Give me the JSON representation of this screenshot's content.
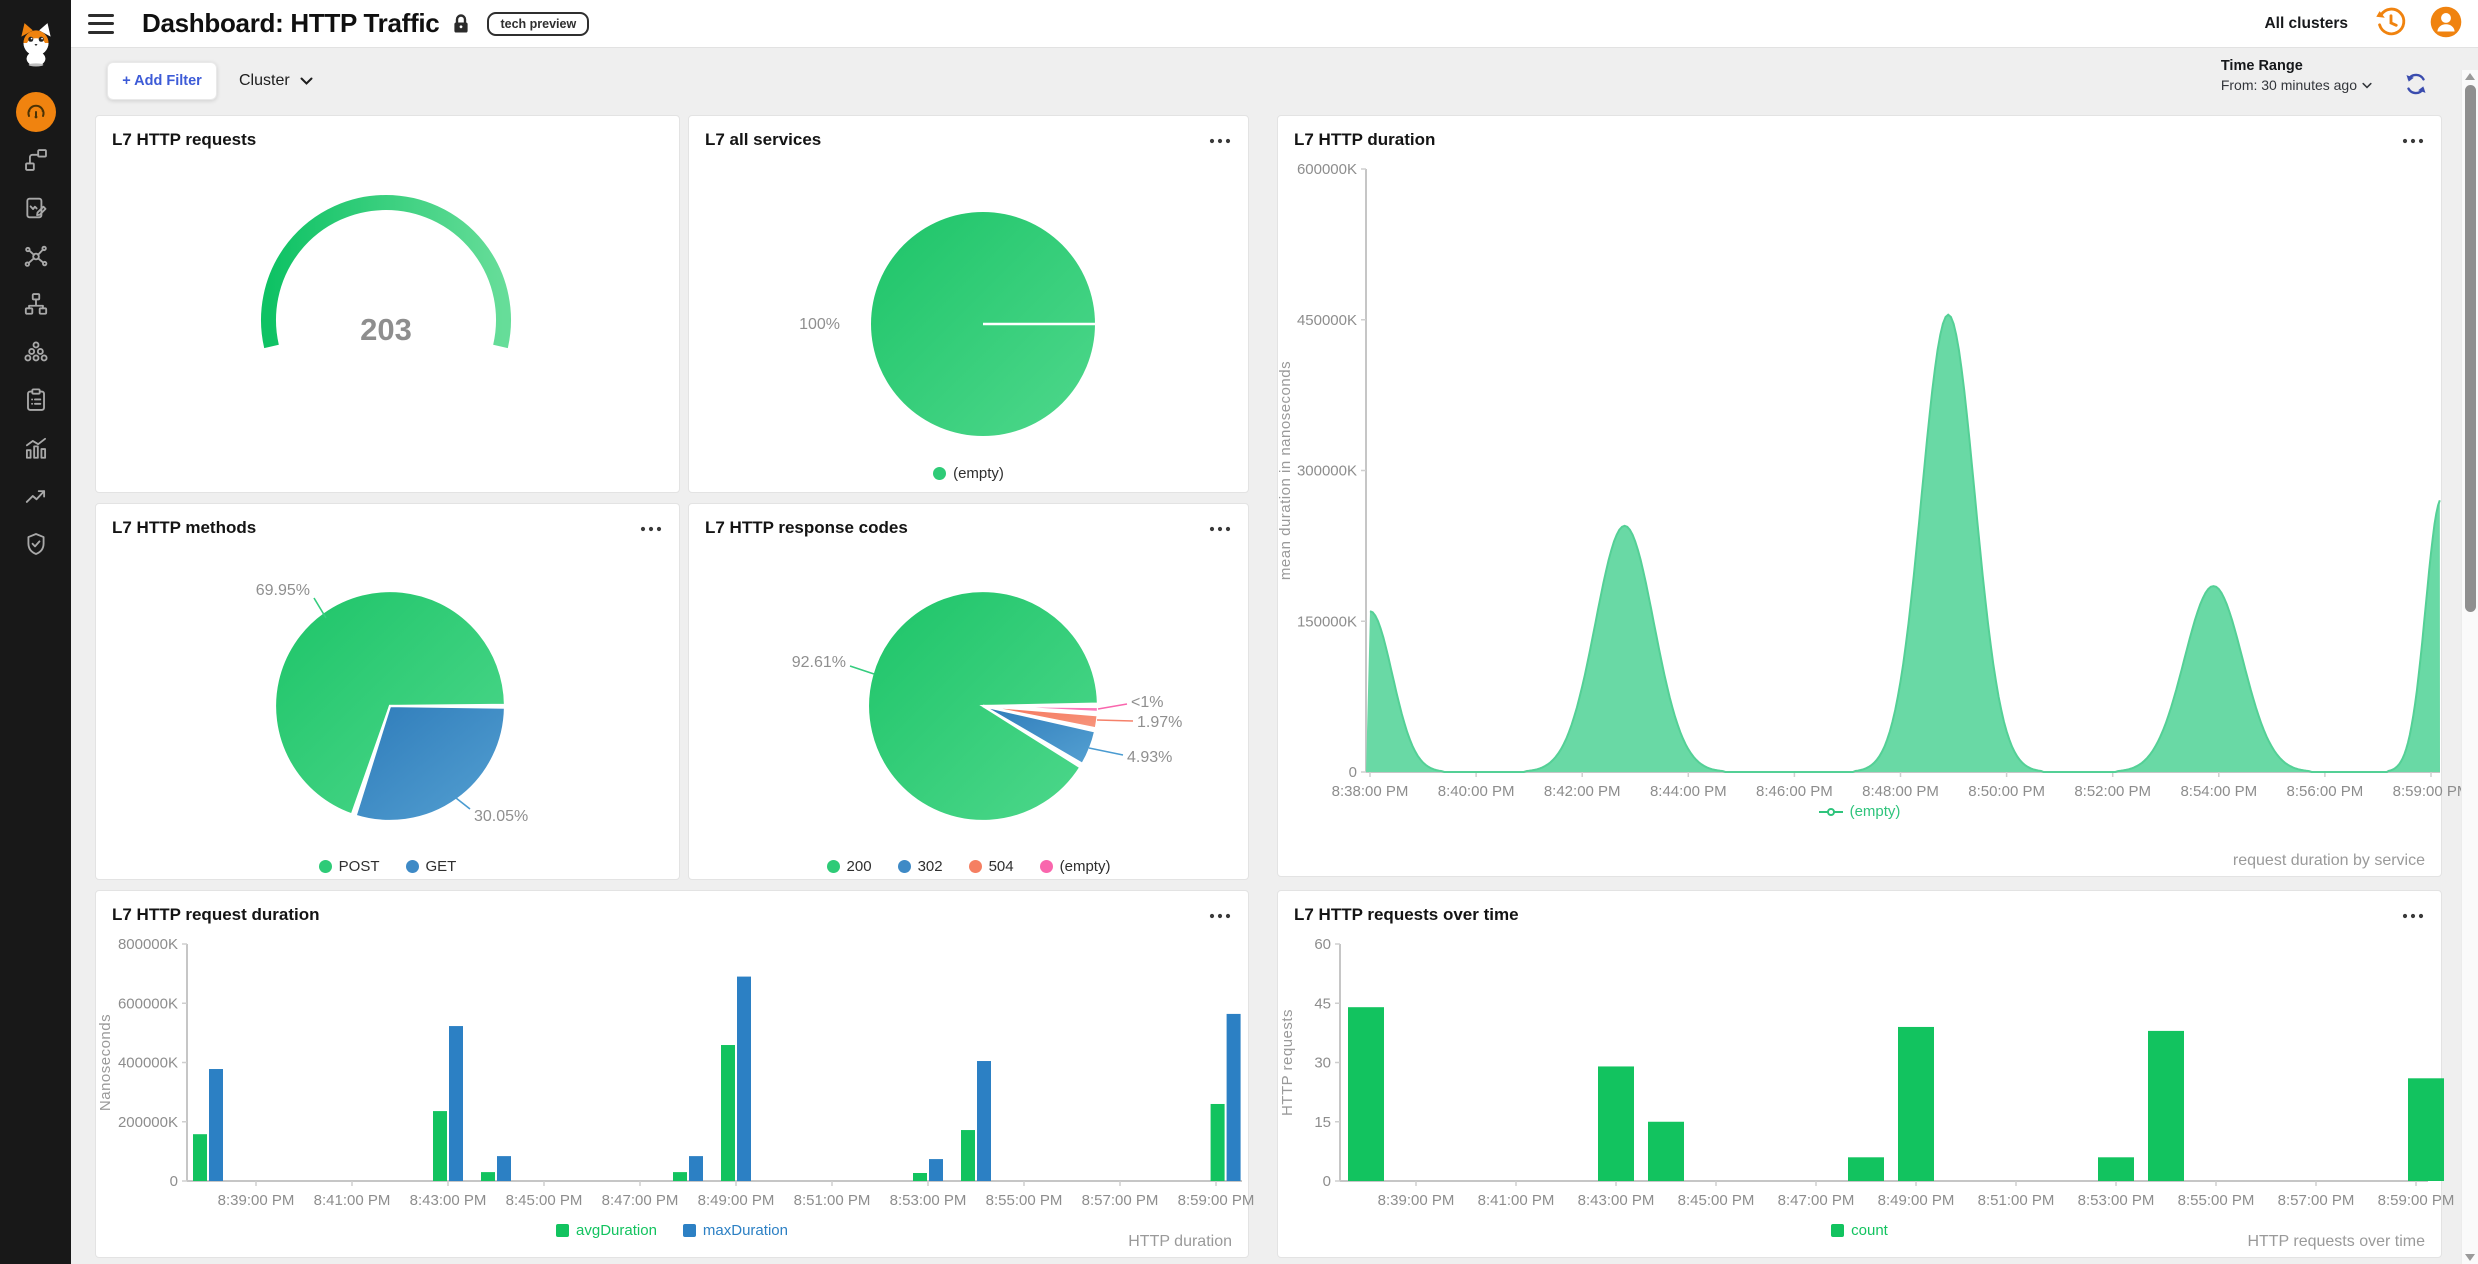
{
  "header": {
    "title": "Dashboard: HTTP Traffic",
    "badge": "tech preview",
    "all_clusters": "All clusters"
  },
  "filter_bar": {
    "add_filter": "+ Add Filter",
    "cluster": "Cluster",
    "time_range_label": "Time Range",
    "time_range_value": "From: 30 minutes ago"
  },
  "sidebar": {
    "items": [
      "cat-logo",
      "dashboard",
      "topology",
      "flow-logs",
      "service-map",
      "network",
      "clusters",
      "processes",
      "metrics",
      "trends",
      "security"
    ]
  },
  "palette": {
    "green": "#2ecb77",
    "blue": "#3e8ac6",
    "salmon": "#f57f62",
    "pink": "#f966ad",
    "orange": "#f0830f",
    "indigo": "#3a4cae",
    "link_blue": "#3d5bd7"
  },
  "cards": {
    "requests": {
      "title": "L7 HTTP requests",
      "gauge": {
        "value": "203",
        "a0": 167,
        "a1": 373,
        "c1": "#0ec264",
        "c2": "#66dd99"
      }
    },
    "services": {
      "title": "L7 all services",
      "pie": {
        "slices": [
          {
            "label": "(empty)",
            "pct": 100,
            "a0": 0,
            "a1": 360,
            "c1": "#1dc468",
            "c2": "#4fd88c"
          }
        ],
        "callouts": [
          {
            "text": "100%",
            "tx": -143,
            "ty": 0,
            "anchor": "end"
          }
        ],
        "legend": [
          {
            "label": "(empty)",
            "color": "#2ecb77"
          }
        ]
      }
    },
    "duration": {
      "title": "L7 HTTP duration",
      "caption": "request duration by service",
      "chart": {
        "type": "area",
        "ylabel": "mean duration in nanoseconds",
        "ymax": 600000,
        "yticks": [
          {
            "v": 0,
            "t": "0"
          },
          {
            "v": 150000,
            "t": "150000K"
          },
          {
            "v": 300000,
            "t": "300000K"
          },
          {
            "v": 450000,
            "t": "450000K"
          },
          {
            "v": 600000,
            "t": "600000K"
          }
        ],
        "xticks": [
          "8:38:00 PM",
          "8:40:00 PM",
          "8:42:00 PM",
          "8:44:00 PM",
          "8:46:00 PM",
          "8:48:00 PM",
          "8:50:00 PM",
          "8:52:00 PM",
          "8:54:00 PM",
          "8:56:00 PM",
          "8:59:00 PM"
        ],
        "series_name": "(empty)",
        "peaks": [
          {
            "minute": 0,
            "value": 160000,
            "sigma": 0.42
          },
          {
            "minute": 4.8,
            "value": 245000,
            "sigma": 0.55
          },
          {
            "minute": 10.9,
            "value": 455000,
            "sigma": 0.5
          },
          {
            "minute": 15.9,
            "value": 185000,
            "sigma": 0.55
          },
          {
            "minute": 21.3,
            "value": 272000,
            "sigma": 0.45
          }
        ],
        "fill": "#69d9a5",
        "stroke": "#54d096",
        "legend": [
          {
            "label": "(empty)",
            "color": "#2fc47c",
            "marker": "linedot"
          }
        ]
      }
    },
    "methods": {
      "title": "L7 HTTP methods",
      "pie": {
        "slices": [
          {
            "label": "POST",
            "pct": 69.95,
            "a0": 109.4,
            "a1": 359.4,
            "c1": "#1dc468",
            "c2": "#4fd88c"
          },
          {
            "label": "GET",
            "pct": 30.05,
            "a0": 0.8,
            "a1": 107.4,
            "c1": "#2f7cba",
            "c2": "#54a0d2"
          }
        ],
        "callouts": [
          {
            "text": "69.95%",
            "tx": -80,
            "ty": -116,
            "anchor": "end",
            "leader": [
              -76,
              -108,
              -64,
              -88
            ],
            "color": "#35cc7e"
          },
          {
            "text": "30.05%",
            "tx": 84,
            "ty": 110,
            "anchor": "start",
            "leader": [
              66,
              92,
              80,
              103
            ],
            "color": "#4a9bd1"
          }
        ],
        "legend": [
          {
            "label": "POST",
            "color": "#2ecb77"
          },
          {
            "label": "GET",
            "color": "#3e8ac6"
          }
        ]
      }
    },
    "codes": {
      "title": "L7 HTTP response codes",
      "pie": {
        "slices": [
          {
            "label": "200",
            "pct": 92.61,
            "a0": 32.2,
            "a1": 358.8,
            "c1": "#1dc468",
            "c2": "#4fd88c"
          },
          {
            "label": "302",
            "pct": 4.93,
            "a0": 12.8,
            "a1": 30.2,
            "c1": "#2f7cba",
            "c2": "#54a0d2"
          },
          {
            "label": "504",
            "pct": 1.97,
            "a0": 4.6,
            "a1": 11.2,
            "c1": "#f5745a",
            "c2": "#f7967d"
          },
          {
            "label": "(empty)",
            "pct": 0.49,
            "a0": 0.5,
            "a1": 3.0,
            "c1": "#f966ad",
            "c2": "#fb7fc0"
          }
        ],
        "callouts": [
          {
            "text": "92.61%",
            "tx": -137,
            "ty": -44,
            "anchor": "end",
            "leader": [
              -133,
              -40,
              -109,
              -32
            ],
            "color": "#35cc7e"
          },
          {
            "text": "<1%",
            "tx": 148,
            "ty": -4,
            "anchor": "start",
            "leader": [
              115,
              3,
              144,
              -2
            ],
            "color": "#f966ad"
          },
          {
            "text": "1.97%",
            "tx": 154,
            "ty": 16,
            "anchor": "start",
            "leader": [
              114,
              14,
              150,
              15
            ],
            "color": "#f5816a"
          },
          {
            "text": "4.93%",
            "tx": 144,
            "ty": 51,
            "anchor": "start",
            "leader": [
              106,
              42,
              140,
              49
            ],
            "color": "#4a9bd1"
          }
        ],
        "legend": [
          {
            "label": "200",
            "color": "#2ecb77"
          },
          {
            "label": "302",
            "color": "#3e8ac6"
          },
          {
            "label": "504",
            "color": "#f57f62"
          },
          {
            "label": "(empty)",
            "color": "#f966ad"
          }
        ]
      }
    },
    "request_duration": {
      "title": "L7 HTTP request duration",
      "caption": "HTTP duration",
      "chart": {
        "type": "groupbar",
        "ylabel": "Nanoseconds",
        "ymax": 800000,
        "yticks": [
          {
            "v": 0,
            "t": "0"
          },
          {
            "v": 200000,
            "t": "200000K"
          },
          {
            "v": 400000,
            "t": "400000K"
          },
          {
            "v": 600000,
            "t": "600000K"
          },
          {
            "v": 800000,
            "t": "800000K"
          }
        ],
        "xticks": [
          "8:39:00 PM",
          "8:41:00 PM",
          "8:43:00 PM",
          "8:45:00 PM",
          "8:47:00 PM",
          "8:49:00 PM",
          "8:51:00 PM",
          "8:53:00 PM",
          "8:55:00 PM",
          "8:57:00 PM",
          "8:59:00 PM"
        ],
        "group_minutes": [
          0,
          5,
          6,
          10,
          11,
          15,
          16,
          21.2
        ],
        "series": [
          {
            "name": "avgDuration",
            "color": "#12c35f",
            "values": [
              158000,
              236000,
              30000,
              30000,
              459000,
              27000,
              172000,
              260000
            ]
          },
          {
            "name": "maxDuration",
            "color": "#2c80c4",
            "values": [
              378000,
              523000,
              84000,
              84000,
              690000,
              74000,
              405000,
              564000
            ]
          }
        ],
        "legend": [
          {
            "label": "avgDuration",
            "color": "#12c35f",
            "marker": "square"
          },
          {
            "label": "maxDuration",
            "color": "#2c80c4",
            "marker": "square"
          }
        ]
      }
    },
    "over_time": {
      "title": "L7 HTTP requests over time",
      "caption": "HTTP requests over time",
      "chart": {
        "type": "bar",
        "ylabel": "HTTP requests",
        "ymax": 60,
        "yticks": [
          {
            "v": 0,
            "t": "0"
          },
          {
            "v": 15,
            "t": "15"
          },
          {
            "v": 30,
            "t": "30"
          },
          {
            "v": 45,
            "t": "45"
          },
          {
            "v": 60,
            "t": "60"
          }
        ],
        "xticks": [
          "8:39:00 PM",
          "8:41:00 PM",
          "8:43:00 PM",
          "8:45:00 PM",
          "8:47:00 PM",
          "8:49:00 PM",
          "8:51:00 PM",
          "8:53:00 PM",
          "8:55:00 PM",
          "8:57:00 PM",
          "8:59:00 PM"
        ],
        "group_minutes": [
          0,
          5,
          6,
          10,
          11,
          15,
          16,
          21.2
        ],
        "series": [
          {
            "name": "count",
            "color": "#12c35f",
            "values": [
              44,
              29,
              15,
              6,
              39,
              6,
              38,
              26
            ]
          }
        ],
        "legend": [
          {
            "label": "count",
            "color": "#12c35f",
            "marker": "square"
          }
        ]
      }
    }
  }
}
